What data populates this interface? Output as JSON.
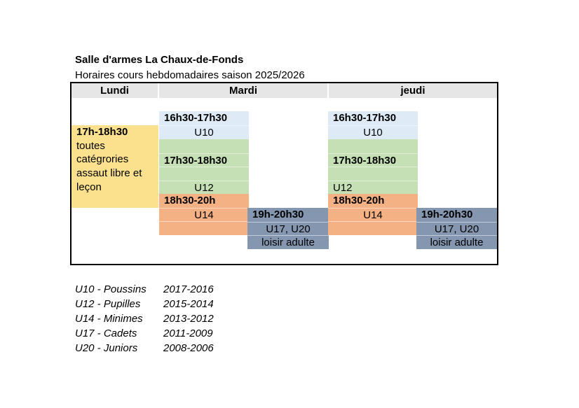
{
  "header": {
    "title": "Salle d'armes La Chaux-de-Fonds",
    "subtitle": "Horaires cours hebdomadaires saison 2025/2026"
  },
  "colors": {
    "monday_block": "#FBE18D",
    "u10_block": "#DEEBF7",
    "u12_block": "#C5E0B4",
    "u14_block": "#F4B183",
    "adult_block": "#8496B0",
    "header_row": "#E7E6E6",
    "table_border": "#000000"
  },
  "table": {
    "day_headers": [
      "Lundi",
      "Mardi",
      "jeudi"
    ],
    "lundi": {
      "time": "17h-18h30",
      "desc1": "toutes",
      "desc2": "catégrories",
      "desc3": "assaut libre et",
      "desc4": "leçon"
    },
    "mardi": {
      "u10_time": "16h30-17h30",
      "u10_label": "U10",
      "u12_time": "17h30-18h30",
      "u12_label": "U12",
      "u14_time": "18h30-20h",
      "u14_label": "U14",
      "adult_time": "19h-20h30",
      "adult_groups": "U17, U20",
      "adult_label": "loisir adulte"
    },
    "jeudi": {
      "u10_time": "16h30-17h30",
      "u10_label": "U10",
      "u12_time": "17h30-18h30",
      "u12_label": "U12",
      "u14_time": "18h30-20h",
      "u14_label": "U14",
      "adult_time": "19h-20h30",
      "adult_groups": "U17, U20",
      "adult_label": "loisir adulte"
    }
  },
  "legend": {
    "rows": [
      {
        "label": "U10 - Poussins",
        "years": "2017-2016"
      },
      {
        "label": "U12 - Pupilles",
        "years": "2015-2014"
      },
      {
        "label": "U14 - Minimes",
        "years": "2013-2012"
      },
      {
        "label": "U17 - Cadets",
        "years": "2011-2009"
      },
      {
        "label": "U20 - Juniors",
        "years": "2008-2006"
      }
    ]
  }
}
